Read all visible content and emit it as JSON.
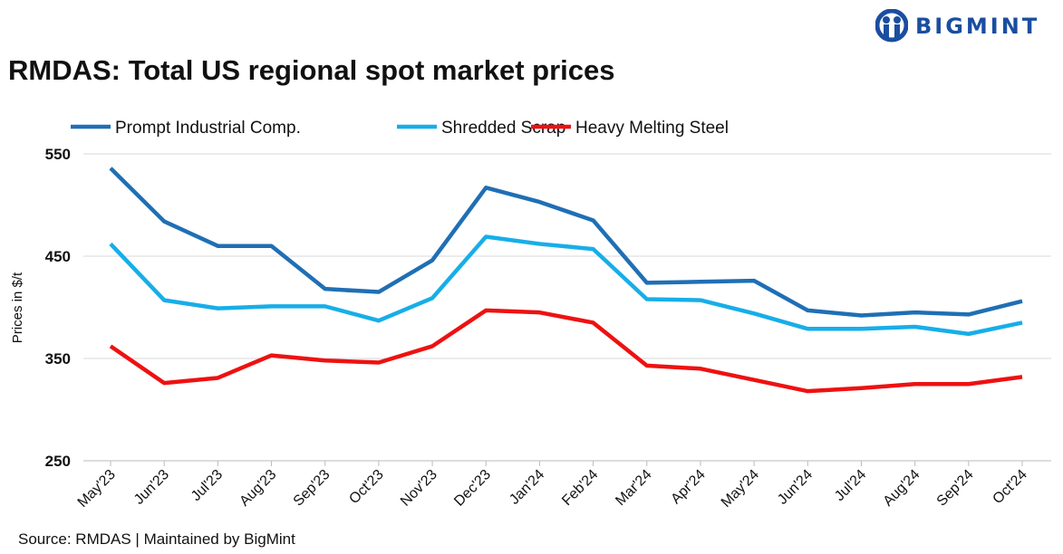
{
  "brand": {
    "name": "BIGMINT",
    "color": "#1a4ea0"
  },
  "source": "Source: RMDAS | Maintained by BigMint",
  "chart_data": {
    "type": "line",
    "title": "RMDAS: Total US regional spot market prices",
    "ylabel": "Prices in $/t",
    "xlabel": "",
    "ylim": [
      250,
      550
    ],
    "yticks": [
      250,
      350,
      450,
      550
    ],
    "grid": true,
    "legend": "top-left",
    "categories": [
      "May'23",
      "Jun'23",
      "Jul'23",
      "Aug'23",
      "Sep'23",
      "Oct'23",
      "Nov'23",
      "Dec'23",
      "Jan'24",
      "Feb'24",
      "Mar'24",
      "Apr'24",
      "May'24",
      "Jun'24",
      "Jul'24",
      "Aug'24",
      "Sep'24",
      "Oct'24"
    ],
    "series": [
      {
        "name": "Prompt Industrial Comp.",
        "color": "#1f6fb5",
        "values": [
          536,
          484,
          460,
          460,
          418,
          415,
          446,
          517,
          503,
          485,
          424,
          425,
          426,
          397,
          392,
          395,
          393,
          406
        ]
      },
      {
        "name": "Shredded Scrap",
        "color": "#17aee8",
        "values": [
          462,
          407,
          399,
          401,
          401,
          387,
          409,
          469,
          462,
          457,
          408,
          407,
          394,
          379,
          379,
          381,
          374,
          385
        ]
      },
      {
        "name": "Heavy Melting Steel",
        "color": "#ee1111",
        "values": [
          362,
          326,
          331,
          353,
          348,
          346,
          362,
          397,
          395,
          385,
          343,
          340,
          329,
          318,
          321,
          325,
          325,
          332
        ]
      }
    ]
  }
}
